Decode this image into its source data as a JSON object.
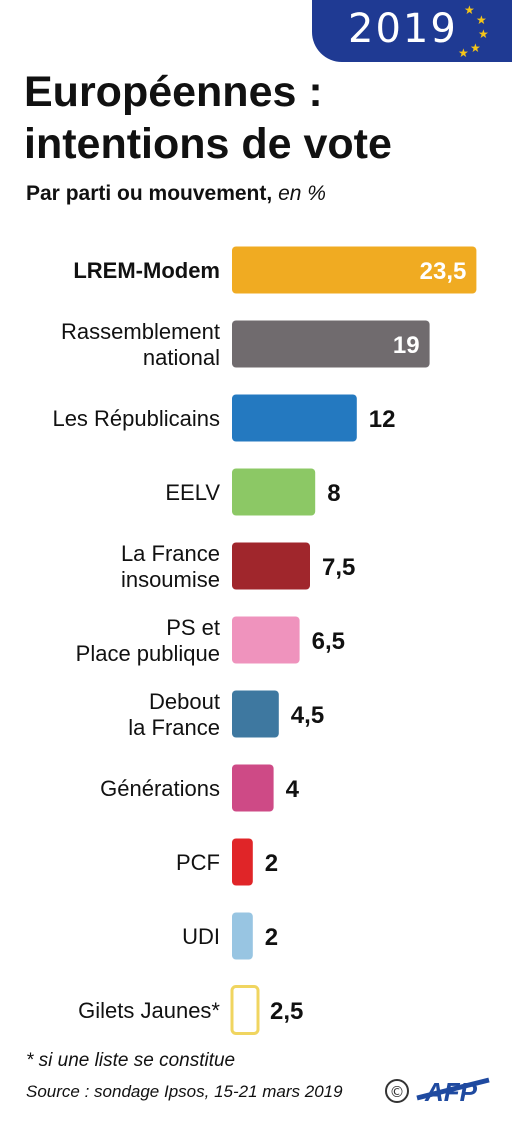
{
  "banner": {
    "year": "2019"
  },
  "title": "Européennes :\nintentions de vote",
  "subtitle": {
    "main": "Par parti ou mouvement,",
    "unit": "en %"
  },
  "footnote": "* si une liste se constitue",
  "source": "Source : sondage Ipsos, 15-21 mars 2019",
  "credit": {
    "copyright": "©",
    "agency": "AFP"
  },
  "chart_data": {
    "type": "bar",
    "orientation": "horizontal",
    "categories": [
      "LREM-Modem",
      "Rassemblement\nnational",
      "Les Républicains",
      "EELV",
      "La France\ninsoumise",
      "PS et\nPlace publique",
      "Debout\nla France",
      "Générations",
      "PCF",
      "UDI",
      "Gilets Jaunes*"
    ],
    "values": [
      23.5,
      19,
      12,
      8,
      7.5,
      6.5,
      4.5,
      4,
      2,
      2,
      2.5
    ],
    "value_labels": [
      "23,5",
      "19",
      "12",
      "8",
      "7,5",
      "6,5",
      "4,5",
      "4",
      "2",
      "2",
      "2,5"
    ],
    "colors": [
      "#f0ab22",
      "#706b6e",
      "#2479c0",
      "#8cc865",
      "#a0262c",
      "#ef93bd",
      "#3e78a0",
      "#ce4a86",
      "#e02528",
      "#98c5e2",
      "#ffffff"
    ],
    "outline_only": [
      false,
      false,
      false,
      false,
      false,
      false,
      false,
      false,
      false,
      false,
      true
    ],
    "outline_color": "#f0d560",
    "highlight": "LREM-Modem",
    "title": "Européennes : intentions de vote",
    "unit": "%",
    "xlim": [
      0,
      24
    ]
  }
}
